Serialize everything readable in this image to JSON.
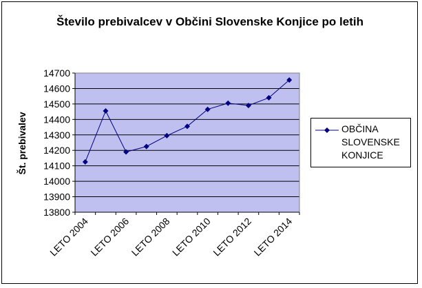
{
  "chart_data": {
    "type": "line",
    "title": "Število prebivalcev v Občini Slovenske Konjice po letih",
    "xlabel": "",
    "ylabel": "Št. prebivalev",
    "ylim": [
      13800,
      14700
    ],
    "yticks": [
      13800,
      13900,
      14000,
      14100,
      14200,
      14300,
      14400,
      14500,
      14600,
      14700
    ],
    "xtick_labels": [
      "LETO 2004",
      "LETO 2006",
      "LETO 2008",
      "LETO 2010",
      "LETO 2012",
      "LETO 2014"
    ],
    "categories": [
      "2004",
      "2005",
      "2006",
      "2007",
      "2008",
      "2009",
      "2010",
      "2011",
      "2012",
      "2013",
      "2014"
    ],
    "series": [
      {
        "name": "OBČINA SLOVENSKE KONJICE",
        "values": [
          14125,
          14455,
          14190,
          14225,
          14295,
          14355,
          14465,
          14505,
          14490,
          14540,
          14655
        ]
      }
    ],
    "grid": true,
    "legend": "right",
    "colors": {
      "plot_background": "#C0C0F0",
      "series": "#000080",
      "gridline": "#000000"
    }
  }
}
